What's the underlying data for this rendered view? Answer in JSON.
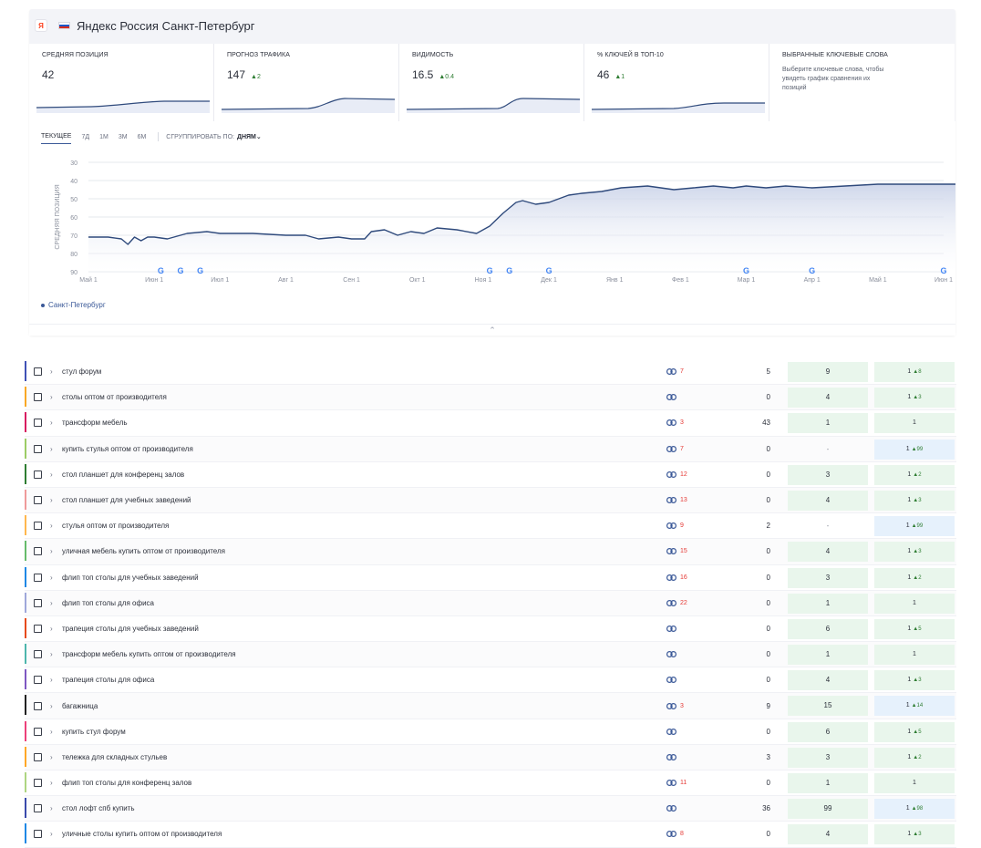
{
  "header": {
    "title": "Яндекс Россия Санкт-Петербург",
    "engine_icon": "yandex-icon",
    "flag": "russia-flag",
    "flag_colors": [
      "#ffffff",
      "#1c57c8",
      "#d52b1e"
    ]
  },
  "metrics": [
    {
      "label": "СРЕДНЯЯ ПОЗИЦИЯ",
      "value": "42",
      "delta": ""
    },
    {
      "label": "ПРОГНОЗ ТРАФИКА",
      "value": "147",
      "delta": "▲2"
    },
    {
      "label": "ВИДИМОСТЬ",
      "value": "16.5",
      "delta": "▲0.4"
    },
    {
      "label": "% КЛЮЧЕЙ В ТОП-10",
      "value": "46",
      "delta": "▲1"
    },
    {
      "label": "ВЫБРАННЫЕ КЛЮЧЕВЫЕ СЛОВА",
      "hint": "Выберите ключевые слова, чтобы увидеть график сравнения их позиций"
    }
  ],
  "tabs": [
    {
      "label": "ТЕКУЩЕЕ",
      "active": true
    },
    {
      "label": "7Д",
      "active": false
    },
    {
      "label": "1М",
      "active": false
    },
    {
      "label": "3М",
      "active": false
    },
    {
      "label": "6М",
      "active": false
    }
  ],
  "group_by": {
    "label": "СГРУППИРОВАТЬ ПО:",
    "value": "ДНЯМ⌄"
  },
  "legend": {
    "label": "Санкт-Петербург"
  },
  "colors": {
    "accent": "#3b5998",
    "line": "#2f4a7c",
    "positive": "#2e7d32",
    "negative": "#e53935",
    "green_cell": "#e9f6ec",
    "blue_cell": "#e6f1fc"
  },
  "chart_data": {
    "type": "area",
    "ylabel": "СРЕДНЯЯ ПОЗИЦИЯ",
    "yticks": [
      30,
      40,
      50,
      60,
      70,
      80,
      90
    ],
    "ylim": [
      30,
      90
    ],
    "y_inverted": false,
    "grid": true,
    "legend": "bottom-left",
    "x_labels": [
      "Май 1",
      "Июн 1",
      "Июл 1",
      "Авг 1",
      "Сен 1",
      "Окт 1",
      "Ноя 1",
      "Дек 1",
      "Янв 1",
      "Фев 1",
      "Мар 1",
      "Апр 1",
      "Май 1",
      "Июн 1"
    ],
    "google_markers_months": [
      1.1,
      1.4,
      1.7,
      6.1,
      6.4,
      7.0,
      10.0,
      11.0,
      13.0
    ],
    "series": [
      {
        "name": "Санкт-Петербург",
        "points": [
          [
            0.0,
            71
          ],
          [
            0.3,
            71
          ],
          [
            0.5,
            72
          ],
          [
            0.6,
            75
          ],
          [
            0.7,
            71
          ],
          [
            0.8,
            73
          ],
          [
            0.9,
            71
          ],
          [
            1.0,
            71
          ],
          [
            1.2,
            72
          ],
          [
            1.5,
            69
          ],
          [
            1.8,
            68
          ],
          [
            2.0,
            69
          ],
          [
            2.5,
            69
          ],
          [
            3.0,
            70
          ],
          [
            3.3,
            70
          ],
          [
            3.5,
            72
          ],
          [
            3.8,
            71
          ],
          [
            4.0,
            72
          ],
          [
            4.2,
            72
          ],
          [
            4.3,
            68
          ],
          [
            4.5,
            67
          ],
          [
            4.7,
            70
          ],
          [
            4.9,
            68
          ],
          [
            5.1,
            69
          ],
          [
            5.3,
            66
          ],
          [
            5.6,
            67
          ],
          [
            5.9,
            69
          ],
          [
            6.1,
            65
          ],
          [
            6.3,
            58
          ],
          [
            6.5,
            52
          ],
          [
            6.6,
            51
          ],
          [
            6.8,
            53
          ],
          [
            7.0,
            52
          ],
          [
            7.3,
            48
          ],
          [
            7.5,
            47
          ],
          [
            7.8,
            46
          ],
          [
            8.1,
            44
          ],
          [
            8.5,
            43
          ],
          [
            8.9,
            45
          ],
          [
            9.2,
            44
          ],
          [
            9.5,
            43
          ],
          [
            9.8,
            44
          ],
          [
            10.0,
            43
          ],
          [
            10.3,
            44
          ],
          [
            10.6,
            43
          ],
          [
            11.0,
            44
          ],
          [
            11.5,
            43
          ],
          [
            12.0,
            42
          ],
          [
            12.5,
            42
          ],
          [
            13.0,
            42
          ],
          [
            13.5,
            42
          ],
          [
            14.0,
            42
          ]
        ]
      }
    ]
  },
  "keywords": [
    {
      "text": "стул форум",
      "color": "#3f51b5",
      "links": "7",
      "a": "5",
      "b": "9",
      "c": "1",
      "c_delta": "▲8",
      "c_style": "green"
    },
    {
      "text": "столы оптом от производителя",
      "color": "#f9a825",
      "links": "",
      "a": "0",
      "b": "4",
      "c": "1",
      "c_delta": "▲3",
      "c_style": "green"
    },
    {
      "text": "трансформ мебель",
      "color": "#d81b60",
      "links": "3",
      "a": "43",
      "b": "1",
      "c": "1",
      "c_delta": "",
      "c_style": "green"
    },
    {
      "text": "купить стулья оптом от производителя",
      "color": "#9ccc65",
      "links": "7",
      "a": "0",
      "b": "-",
      "c": "1",
      "c_delta": "▲99",
      "c_style": "blue"
    },
    {
      "text": "стол планшет для конференц залов",
      "color": "#2e7d32",
      "links": "12",
      "a": "0",
      "b": "3",
      "c": "1",
      "c_delta": "▲2",
      "c_style": "green"
    },
    {
      "text": "стол планшет для учебных заведений",
      "color": "#ef9a9a",
      "links": "13",
      "a": "0",
      "b": "4",
      "c": "1",
      "c_delta": "▲3",
      "c_style": "green"
    },
    {
      "text": "стулья оптом от производителя",
      "color": "#ffb74d",
      "links": "9",
      "a": "2",
      "b": "-",
      "c": "1",
      "c_delta": "▲99",
      "c_style": "blue"
    },
    {
      "text": "уличная мебель купить оптом от производителя",
      "color": "#66bb6a",
      "links": "15",
      "a": "0",
      "b": "4",
      "c": "1",
      "c_delta": "▲3",
      "c_style": "green"
    },
    {
      "text": "флип топ столы для учебных заведений",
      "color": "#1e88e5",
      "links": "16",
      "a": "0",
      "b": "3",
      "c": "1",
      "c_delta": "▲2",
      "c_style": "green"
    },
    {
      "text": "флип топ столы для офиса",
      "color": "#9fa8da",
      "links": "22",
      "a": "0",
      "b": "1",
      "c": "1",
      "c_delta": "",
      "c_style": "green"
    },
    {
      "text": "трапеция столы для учебных заведений",
      "color": "#e64a19",
      "links": "",
      "a": "0",
      "b": "6",
      "c": "1",
      "c_delta": "▲5",
      "c_style": "green"
    },
    {
      "text": "трансформ мебель купить оптом от производителя",
      "color": "#4db6ac",
      "links": "",
      "a": "0",
      "b": "1",
      "c": "1",
      "c_delta": "",
      "c_style": "green"
    },
    {
      "text": "трапеция столы для офиса",
      "color": "#7e57c2",
      "links": "",
      "a": "0",
      "b": "4",
      "c": "1",
      "c_delta": "▲3",
      "c_style": "green"
    },
    {
      "text": "багажница",
      "color": "#212121",
      "links": "3",
      "a": "9",
      "b": "15",
      "c": "1",
      "c_delta": "▲14",
      "c_style": "blue"
    },
    {
      "text": "купить стул форум",
      "color": "#ec407a",
      "links": "",
      "a": "0",
      "b": "6",
      "c": "1",
      "c_delta": "▲5",
      "c_style": "green"
    },
    {
      "text": "тележка для складных стульев",
      "color": "#ffa726",
      "links": "",
      "a": "3",
      "b": "3",
      "c": "1",
      "c_delta": "▲2",
      "c_style": "green"
    },
    {
      "text": "флип топ столы для конференц залов",
      "color": "#aed581",
      "links": "11",
      "a": "0",
      "b": "1",
      "c": "1",
      "c_delta": "",
      "c_style": "green"
    },
    {
      "text": "стол лофт спб купить",
      "color": "#3949ab",
      "links": "",
      "a": "36",
      "b": "99",
      "c": "1",
      "c_delta": "▲98",
      "c_style": "blue"
    },
    {
      "text": "уличные столы купить оптом от производителя",
      "color": "#1e88e5",
      "links": "8",
      "a": "0",
      "b": "4",
      "c": "1",
      "c_delta": "▲3",
      "c_style": "green"
    }
  ]
}
